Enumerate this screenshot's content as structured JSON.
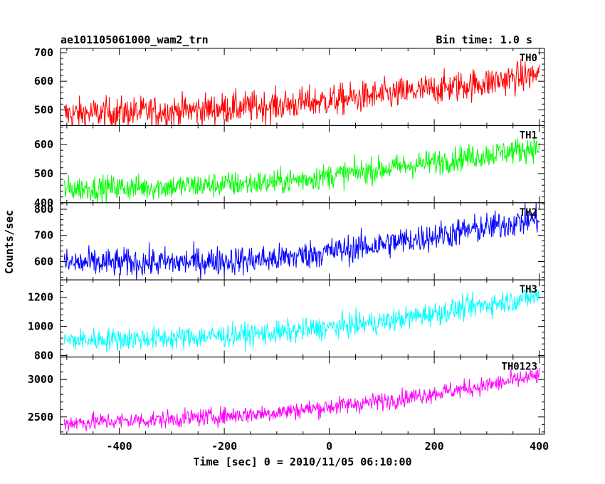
{
  "chart_data": {
    "type": "line",
    "title": "ae101105061000_wam2_trn",
    "subtitle": "Bin time: 1.0 s",
    "xlabel": "Time [sec] 0 = 2010/11/05 06:10:00",
    "ylabel": "Counts/sec",
    "xlim": [
      -512,
      410
    ],
    "x_ticks": [
      -400,
      -200,
      0,
      200,
      400
    ],
    "grid": false,
    "x_start": -505,
    "x_end": 400,
    "x_step": 1,
    "panels": [
      {
        "name": "TH0",
        "color": "#ff0000",
        "ylim": [
          445,
          715
        ],
        "y_ticks": [
          500,
          600,
          700
        ],
        "trend": {
          "x": [
            -505,
            -300,
            -100,
            100,
            300,
            400
          ],
          "y": [
            485,
            495,
            515,
            550,
            595,
            625
          ]
        },
        "noise_amplitude": 28
      },
      {
        "name": "TH1",
        "color": "#00ff00",
        "ylim": [
          400,
          665
        ],
        "y_ticks": [
          400,
          500,
          600
        ],
        "trend": {
          "x": [
            -505,
            -300,
            -100,
            100,
            300,
            400
          ],
          "y": [
            448,
            455,
            470,
            515,
            565,
            590
          ]
        },
        "noise_amplitude": 22
      },
      {
        "name": "TH2",
        "color": "#0000ff",
        "ylim": [
          530,
          825
        ],
        "y_ticks": [
          600,
          700,
          800
        ],
        "trend": {
          "x": [
            -505,
            -300,
            -100,
            100,
            300,
            400
          ],
          "y": [
            593,
            597,
            610,
            665,
            730,
            765
          ]
        },
        "noise_amplitude": 28
      },
      {
        "name": "TH3",
        "color": "#00ffff",
        "ylim": [
          790,
          1320
        ],
        "y_ticks": [
          800,
          1000,
          1200
        ],
        "trend": {
          "x": [
            -505,
            -300,
            -100,
            100,
            300,
            400
          ],
          "y": [
            905,
            920,
            955,
            1030,
            1150,
            1210
          ],
          "style": "smooth"
        },
        "noise_amplitude": 40
      },
      {
        "name": "TH0123",
        "color": "#ff00ff",
        "ylim": [
          2270,
          3300
        ],
        "y_ticks": [
          2500,
          3000
        ],
        "trend": {
          "x": [
            -505,
            -300,
            -100,
            100,
            300,
            400
          ],
          "y": [
            2420,
            2470,
            2560,
            2710,
            2920,
            3050
          ]
        },
        "noise_amplitude": 60
      }
    ]
  }
}
